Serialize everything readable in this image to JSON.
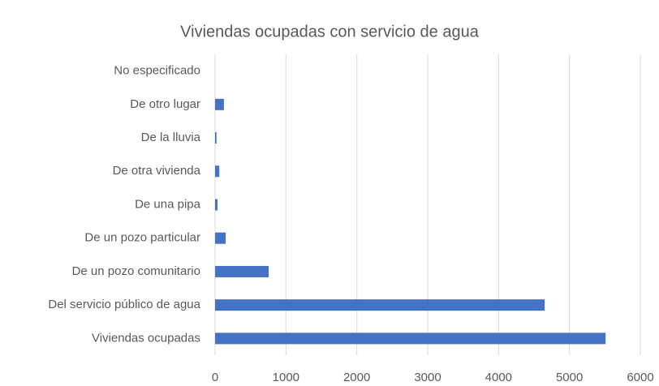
{
  "chart_data": {
    "type": "bar",
    "orientation": "horizontal",
    "title": "Viviendas ocupadas con servicio de agua",
    "categories": [
      "No especificado",
      "De otro lugar",
      "De la lluvia",
      "De otra vivienda",
      "De una pipa",
      "De un pozo particular",
      "De un pozo comunitario",
      "Del servicio público de agua",
      "Viviendas ocupadas"
    ],
    "values": [
      0,
      125,
      20,
      60,
      35,
      150,
      756,
      4650,
      5510
    ],
    "color": "#4472c4",
    "xlim": [
      0,
      6000
    ],
    "xticks": [
      0,
      1000,
      2000,
      3000,
      4000,
      5000,
      6000
    ],
    "grid": true
  }
}
